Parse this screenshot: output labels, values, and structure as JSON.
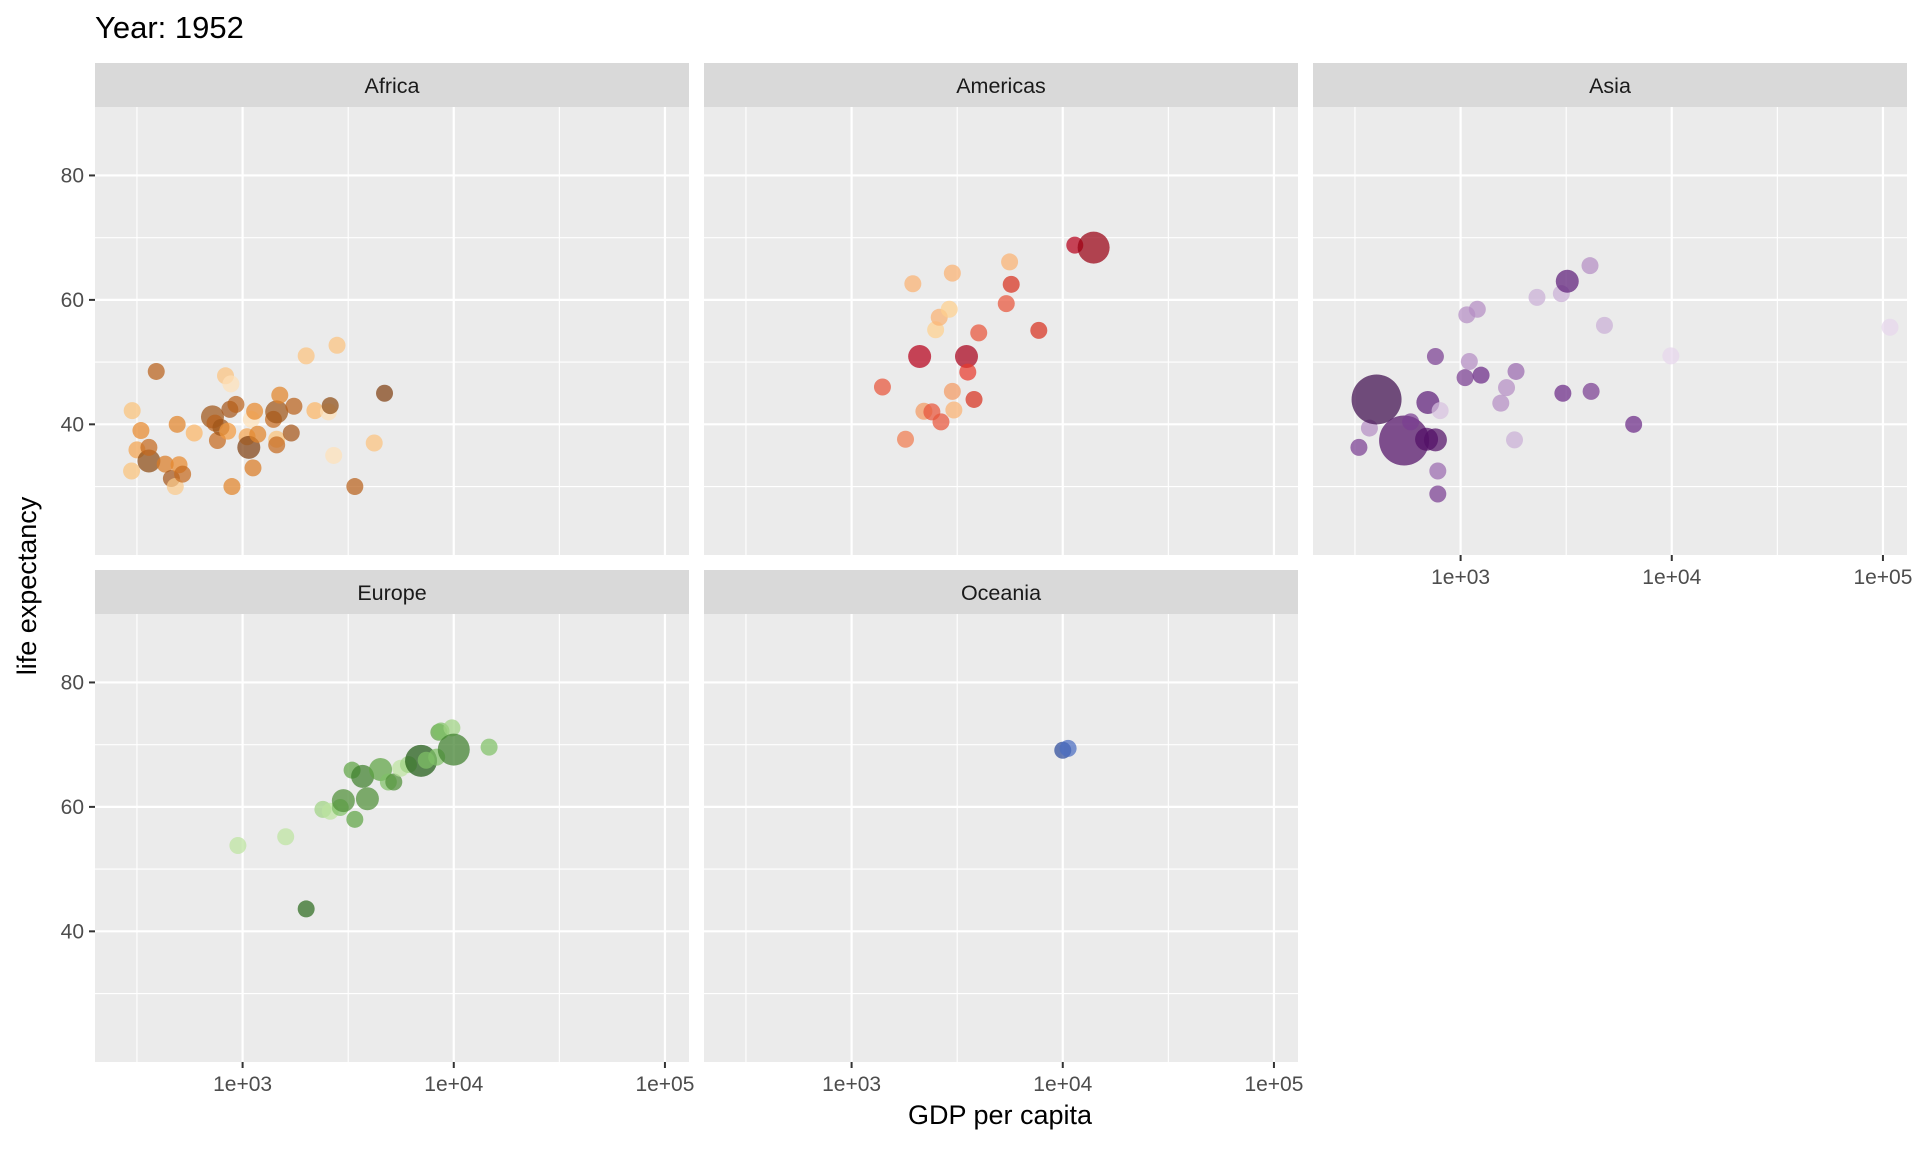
{
  "chart_data": {
    "type": "scatter",
    "title": "Year: 1952",
    "xlabel": "GDP per capita",
    "ylabel": "life expectancy",
    "x_scale": "log10",
    "xlim": [
      200,
      130000
    ],
    "ylim": [
      19,
      91
    ],
    "x_ticks": [
      {
        "value": 1000,
        "label": "1e+03"
      },
      {
        "value": 10000,
        "label": "1e+04"
      },
      {
        "value": 100000,
        "label": "1e+05"
      }
    ],
    "y_ticks": [
      {
        "value": 40,
        "label": "40"
      },
      {
        "value": 60,
        "label": "60"
      },
      {
        "value": 80,
        "label": "80"
      }
    ],
    "y_minor_ticks": [
      30,
      50,
      70
    ],
    "x_minor_ticks": [
      316,
      3162,
      31623
    ],
    "grid": true,
    "legend": "none",
    "facet_by": "continent",
    "size_encodes": "population",
    "color_encodes": "country",
    "panels": [
      {
        "name": "Africa",
        "points": [
          {
            "x": 298,
            "y": 32.5,
            "size": 1,
            "color": "#f9c27a"
          },
          {
            "x": 300,
            "y": 42.2,
            "size": 1,
            "color": "#f9c27a"
          },
          {
            "x": 316,
            "y": 35.9,
            "size": 1,
            "color": "#f3a451"
          },
          {
            "x": 330,
            "y": 39.0,
            "size": 1,
            "color": "#e8892e"
          },
          {
            "x": 360,
            "y": 34.1,
            "size": 2,
            "color": "#8c4b14"
          },
          {
            "x": 360,
            "y": 36.3,
            "size": 1,
            "color": "#c56a1e"
          },
          {
            "x": 390,
            "y": 48.5,
            "size": 1,
            "color": "#b8611c"
          },
          {
            "x": 430,
            "y": 33.6,
            "size": 1,
            "color": "#d97b26"
          },
          {
            "x": 460,
            "y": 31.3,
            "size": 1,
            "color": "#a5561a"
          },
          {
            "x": 480,
            "y": 30.0,
            "size": 1,
            "color": "#fac98a"
          },
          {
            "x": 490,
            "y": 40.0,
            "size": 1,
            "color": "#e08429"
          },
          {
            "x": 500,
            "y": 33.5,
            "size": 1,
            "color": "#e8892e"
          },
          {
            "x": 520,
            "y": 32.0,
            "size": 1,
            "color": "#c56a1e"
          },
          {
            "x": 590,
            "y": 38.6,
            "size": 1,
            "color": "#fbb566"
          },
          {
            "x": 720,
            "y": 41.2,
            "size": 2,
            "color": "#9e5418"
          },
          {
            "x": 740,
            "y": 40.2,
            "size": 1,
            "color": "#b8611c"
          },
          {
            "x": 760,
            "y": 37.4,
            "size": 1,
            "color": "#c56a1e"
          },
          {
            "x": 790,
            "y": 39.5,
            "size": 1,
            "color": "#9e5418"
          },
          {
            "x": 830,
            "y": 47.8,
            "size": 1,
            "color": "#fbc27e"
          },
          {
            "x": 850,
            "y": 38.9,
            "size": 1,
            "color": "#f39a3f"
          },
          {
            "x": 870,
            "y": 42.4,
            "size": 1,
            "color": "#a5561a"
          },
          {
            "x": 880,
            "y": 46.5,
            "size": 1,
            "color": "#fde0b8"
          },
          {
            "x": 890,
            "y": 30.0,
            "size": 1,
            "color": "#e08429"
          },
          {
            "x": 930,
            "y": 43.2,
            "size": 1,
            "color": "#b8611c"
          },
          {
            "x": 1050,
            "y": 38.0,
            "size": 1,
            "color": "#f3a451"
          },
          {
            "x": 1070,
            "y": 36.3,
            "size": 2,
            "color": "#7f4012"
          },
          {
            "x": 1100,
            "y": 40.8,
            "size": 1,
            "color": "#fde0b8"
          },
          {
            "x": 1120,
            "y": 33.0,
            "size": 1,
            "color": "#d97b26"
          },
          {
            "x": 1140,
            "y": 42.1,
            "size": 1,
            "color": "#e8892e"
          },
          {
            "x": 1180,
            "y": 38.4,
            "size": 1,
            "color": "#e08429"
          },
          {
            "x": 1400,
            "y": 40.8,
            "size": 1,
            "color": "#c56a1e"
          },
          {
            "x": 1450,
            "y": 37.6,
            "size": 1,
            "color": "#f9c27a"
          },
          {
            "x": 1450,
            "y": 36.7,
            "size": 1,
            "color": "#c56a1e"
          },
          {
            "x": 1450,
            "y": 42.0,
            "size": 2,
            "color": "#9e5418"
          },
          {
            "x": 1500,
            "y": 44.7,
            "size": 1,
            "color": "#e08429"
          },
          {
            "x": 1700,
            "y": 38.6,
            "size": 1,
            "color": "#a5561a"
          },
          {
            "x": 1750,
            "y": 42.9,
            "size": 1,
            "color": "#b8611c"
          },
          {
            "x": 2000,
            "y": 51.0,
            "size": 1,
            "color": "#fbc27e"
          },
          {
            "x": 2200,
            "y": 42.2,
            "size": 1,
            "color": "#fbb566"
          },
          {
            "x": 2550,
            "y": 42.0,
            "size": 1,
            "color": "#fde0b8"
          },
          {
            "x": 2600,
            "y": 43.0,
            "size": 1,
            "color": "#8c4b14"
          },
          {
            "x": 2700,
            "y": 35.0,
            "size": 1,
            "color": "#fde0b8"
          },
          {
            "x": 2800,
            "y": 52.7,
            "size": 1,
            "color": "#fbc27e"
          },
          {
            "x": 3400,
            "y": 30.0,
            "size": 1,
            "color": "#b8611c"
          },
          {
            "x": 4200,
            "y": 37.0,
            "size": 1,
            "color": "#fbc27e"
          },
          {
            "x": 4700,
            "y": 45.0,
            "size": 1,
            "color": "#7f4012"
          }
        ]
      },
      {
        "name": "Americas",
        "points": [
          {
            "x": 1400,
            "y": 46.0,
            "size": 1,
            "color": "#e8553a"
          },
          {
            "x": 1800,
            "y": 37.6,
            "size": 1,
            "color": "#f07b4f"
          },
          {
            "x": 1950,
            "y": 62.6,
            "size": 1,
            "color": "#f9b272"
          },
          {
            "x": 2100,
            "y": 50.9,
            "size": 2,
            "color": "#b5001a"
          },
          {
            "x": 2200,
            "y": 42.1,
            "size": 1,
            "color": "#f39a63"
          },
          {
            "x": 2400,
            "y": 42.0,
            "size": 1,
            "color": "#e8553a"
          },
          {
            "x": 2500,
            "y": 55.2,
            "size": 1,
            "color": "#fdd08e"
          },
          {
            "x": 2600,
            "y": 57.2,
            "size": 1,
            "color": "#f9b272"
          },
          {
            "x": 2650,
            "y": 40.4,
            "size": 1,
            "color": "#e8553a"
          },
          {
            "x": 2900,
            "y": 58.5,
            "size": 1,
            "color": "#fdd08e"
          },
          {
            "x": 3000,
            "y": 64.3,
            "size": 1,
            "color": "#f9b272"
          },
          {
            "x": 3000,
            "y": 45.3,
            "size": 1,
            "color": "#f39a63"
          },
          {
            "x": 3050,
            "y": 42.3,
            "size": 1,
            "color": "#f9b272"
          },
          {
            "x": 3500,
            "y": 50.9,
            "size": 2,
            "color": "#a8001a"
          },
          {
            "x": 3550,
            "y": 48.4,
            "size": 1,
            "color": "#e83a2e"
          },
          {
            "x": 3800,
            "y": 44.0,
            "size": 1,
            "color": "#d7301f"
          },
          {
            "x": 4000,
            "y": 54.7,
            "size": 1,
            "color": "#e8553a"
          },
          {
            "x": 5400,
            "y": 59.4,
            "size": 1,
            "color": "#e8553a"
          },
          {
            "x": 5600,
            "y": 66.1,
            "size": 1,
            "color": "#f9b272"
          },
          {
            "x": 5700,
            "y": 62.5,
            "size": 1,
            "color": "#d7301f"
          },
          {
            "x": 7700,
            "y": 55.1,
            "size": 1,
            "color": "#d7301f"
          },
          {
            "x": 11400,
            "y": 68.8,
            "size": 1,
            "color": "#b5001a"
          },
          {
            "x": 14000,
            "y": 68.4,
            "size": 3,
            "color": "#990012"
          }
        ]
      },
      {
        "name": "Asia",
        "points": [
          {
            "x": 330,
            "y": 36.3,
            "size": 1,
            "color": "#7a3f92"
          },
          {
            "x": 370,
            "y": 39.4,
            "size": 1,
            "color": "#b48dc3"
          },
          {
            "x": 400,
            "y": 44.0,
            "size": 4,
            "color": "#3f0d4e"
          },
          {
            "x": 540,
            "y": 37.4,
            "size": 4,
            "color": "#520f66"
          },
          {
            "x": 580,
            "y": 40.4,
            "size": 1,
            "color": "#7a3f92"
          },
          {
            "x": 690,
            "y": 37.6,
            "size": 2,
            "color": "#520f66"
          },
          {
            "x": 700,
            "y": 43.5,
            "size": 2,
            "color": "#5d1d78"
          },
          {
            "x": 760,
            "y": 37.5,
            "size": 2,
            "color": "#520f66"
          },
          {
            "x": 760,
            "y": 50.9,
            "size": 1,
            "color": "#7a3f92"
          },
          {
            "x": 780,
            "y": 32.5,
            "size": 1,
            "color": "#9a6aae"
          },
          {
            "x": 780,
            "y": 28.8,
            "size": 1,
            "color": "#7a3f92"
          },
          {
            "x": 800,
            "y": 42.2,
            "size": 1,
            "color": "#d7c1df"
          },
          {
            "x": 1050,
            "y": 47.5,
            "size": 1,
            "color": "#7a3f92"
          },
          {
            "x": 1070,
            "y": 57.6,
            "size": 1,
            "color": "#b48dc3"
          },
          {
            "x": 1100,
            "y": 50.1,
            "size": 1,
            "color": "#b48dc3"
          },
          {
            "x": 1200,
            "y": 58.5,
            "size": 1,
            "color": "#b48dc3"
          },
          {
            "x": 1250,
            "y": 47.9,
            "size": 1,
            "color": "#6b2a86"
          },
          {
            "x": 1550,
            "y": 43.4,
            "size": 1,
            "color": "#b48dc3"
          },
          {
            "x": 1650,
            "y": 45.9,
            "size": 1,
            "color": "#b48dc3"
          },
          {
            "x": 1800,
            "y": 37.5,
            "size": 1,
            "color": "#c9aed6"
          },
          {
            "x": 1830,
            "y": 48.5,
            "size": 1,
            "color": "#9a6aae"
          },
          {
            "x": 2300,
            "y": 60.4,
            "size": 1,
            "color": "#c9aed6"
          },
          {
            "x": 3000,
            "y": 61.0,
            "size": 1,
            "color": "#c9aed6"
          },
          {
            "x": 3050,
            "y": 45.0,
            "size": 1,
            "color": "#6b2a86"
          },
          {
            "x": 3200,
            "y": 63.0,
            "size": 2,
            "color": "#5d1d78"
          },
          {
            "x": 4100,
            "y": 65.5,
            "size": 1,
            "color": "#b48dc3"
          },
          {
            "x": 4150,
            "y": 45.3,
            "size": 1,
            "color": "#7a3f92"
          },
          {
            "x": 4800,
            "y": 55.9,
            "size": 1,
            "color": "#c9aed6"
          },
          {
            "x": 6600,
            "y": 40.0,
            "size": 1,
            "color": "#6b2a86"
          },
          {
            "x": 9900,
            "y": 51.0,
            "size": 1,
            "color": "#e6d6ec"
          },
          {
            "x": 108000,
            "y": 55.6,
            "size": 1,
            "color": "#e6d6ec"
          }
        ]
      },
      {
        "name": "Europe",
        "points": [
          {
            "x": 950,
            "y": 53.8,
            "size": 1,
            "color": "#bde3a0"
          },
          {
            "x": 1600,
            "y": 55.2,
            "size": 1,
            "color": "#bde3a0"
          },
          {
            "x": 2000,
            "y": 43.6,
            "size": 1,
            "color": "#2d6b1f"
          },
          {
            "x": 2400,
            "y": 59.6,
            "size": 1,
            "color": "#9fd383"
          },
          {
            "x": 2600,
            "y": 59.3,
            "size": 1,
            "color": "#bde3a0"
          },
          {
            "x": 2900,
            "y": 59.9,
            "size": 1,
            "color": "#7fc066"
          },
          {
            "x": 3000,
            "y": 61.0,
            "size": 2,
            "color": "#4f8f37"
          },
          {
            "x": 3300,
            "y": 65.9,
            "size": 1,
            "color": "#5ea444"
          },
          {
            "x": 3400,
            "y": 58.0,
            "size": 1,
            "color": "#5ea444"
          },
          {
            "x": 3700,
            "y": 64.9,
            "size": 2,
            "color": "#3f7f2c"
          },
          {
            "x": 3900,
            "y": 61.3,
            "size": 2,
            "color": "#4f8f37"
          },
          {
            "x": 4500,
            "y": 66.0,
            "size": 2,
            "color": "#5ea444"
          },
          {
            "x": 4900,
            "y": 64.0,
            "size": 1,
            "color": "#7fc066"
          },
          {
            "x": 5200,
            "y": 64.0,
            "size": 1,
            "color": "#4f8f37"
          },
          {
            "x": 5600,
            "y": 66.2,
            "size": 1,
            "color": "#bde3a0"
          },
          {
            "x": 6100,
            "y": 66.8,
            "size": 1,
            "color": "#9fd383"
          },
          {
            "x": 7000,
            "y": 67.4,
            "size": 3,
            "color": "#1e5a14"
          },
          {
            "x": 7400,
            "y": 67.5,
            "size": 1,
            "color": "#7fc066"
          },
          {
            "x": 8300,
            "y": 68.0,
            "size": 1,
            "color": "#7fc066"
          },
          {
            "x": 8500,
            "y": 72.0,
            "size": 1,
            "color": "#5ea444"
          },
          {
            "x": 8700,
            "y": 72.2,
            "size": 1,
            "color": "#7fc066"
          },
          {
            "x": 9800,
            "y": 72.7,
            "size": 1,
            "color": "#9fd383"
          },
          {
            "x": 10000,
            "y": 69.2,
            "size": 3,
            "color": "#3f7f2c"
          },
          {
            "x": 14700,
            "y": 69.6,
            "size": 1,
            "color": "#7fc066"
          }
        ]
      },
      {
        "name": "Oceania",
        "points": [
          {
            "x": 10000,
            "y": 69.1,
            "size": 1,
            "color": "#2b4a9a"
          },
          {
            "x": 10600,
            "y": 69.4,
            "size": 1,
            "color": "#4a6cc0"
          }
        ]
      }
    ]
  },
  "colors": {
    "panel_background": "#ebebeb",
    "strip_background": "#d9d9d9",
    "gridline": "#ffffff",
    "tick_label": "#4d4d4d"
  }
}
